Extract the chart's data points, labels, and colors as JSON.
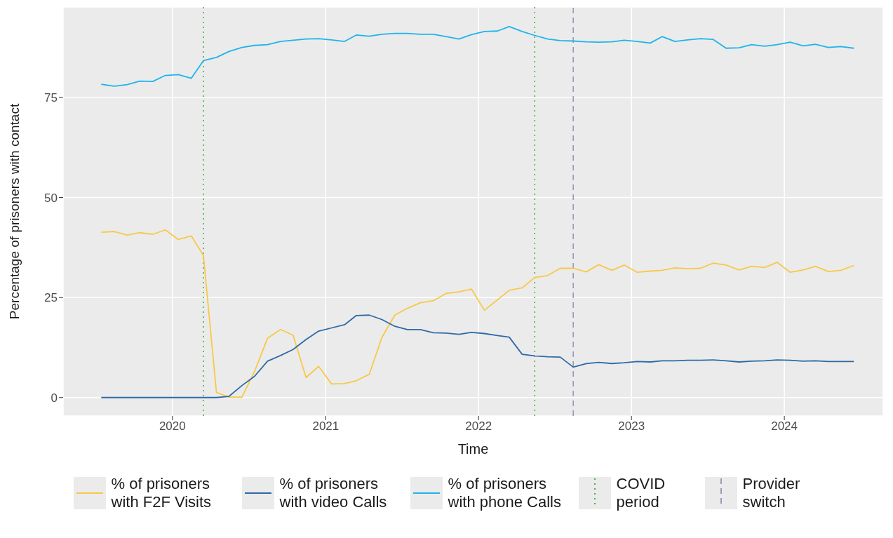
{
  "chart_data": {
    "type": "line",
    "xlabel": "Time",
    "ylabel": "Percentage of prisoners with contact",
    "x": [
      "2019-07-15",
      "2019-08-15",
      "2019-09-15",
      "2019-10-15",
      "2019-11-15",
      "2019-12-15",
      "2020-01-15",
      "2020-02-15",
      "2020-03-15",
      "2020-04-15",
      "2020-05-15",
      "2020-06-15",
      "2020-07-15",
      "2020-08-15",
      "2020-09-15",
      "2020-10-15",
      "2020-11-15",
      "2020-12-15",
      "2021-01-15",
      "2021-02-15",
      "2021-03-15",
      "2021-04-15",
      "2021-05-15",
      "2021-06-15",
      "2021-07-15",
      "2021-08-15",
      "2021-09-15",
      "2021-10-15",
      "2021-11-15",
      "2021-12-15",
      "2022-01-15",
      "2022-02-15",
      "2022-03-15",
      "2022-04-15",
      "2022-05-15",
      "2022-06-15",
      "2022-07-15",
      "2022-08-15",
      "2022-09-15",
      "2022-10-15",
      "2022-11-15",
      "2022-12-15",
      "2023-01-15",
      "2023-02-15",
      "2023-03-15",
      "2023-04-15",
      "2023-05-15",
      "2023-06-15",
      "2023-07-15",
      "2023-08-15",
      "2023-09-15",
      "2023-10-15",
      "2023-11-15",
      "2023-12-15",
      "2024-01-15",
      "2024-02-15",
      "2024-03-15",
      "2024-04-15",
      "2024-05-15",
      "2024-06-15"
    ],
    "series": [
      {
        "name": "% of prisoners with F2F Visits",
        "color": "#f7c948",
        "values": [
          41.3,
          41.5,
          40.6,
          41.2,
          40.8,
          41.9,
          39.5,
          40.4,
          35.5,
          1.3,
          0.1,
          0.1,
          6.5,
          14.8,
          17,
          15.6,
          5,
          7.8,
          3.4,
          3.5,
          4.2,
          5.8,
          15,
          20.6,
          22.3,
          23.7,
          24.2,
          26,
          26.4,
          27.1,
          21.8,
          24.4,
          26.8,
          27.4,
          30,
          30.5,
          32.3,
          32.3,
          31.4,
          33.2,
          31.8,
          33.1,
          31.3,
          31.6,
          31.8,
          32.4,
          32.2,
          32.3,
          33.6,
          33.1,
          31.9,
          32.8,
          32.5,
          33.8,
          31.3,
          31.9,
          32.8,
          31.5,
          31.8,
          33
        ]
      },
      {
        "name": "% of prisoners with video Calls",
        "color": "#2e6aa8",
        "values": [
          0,
          0,
          0,
          0,
          0,
          0,
          0,
          0,
          0,
          0,
          0.3,
          3,
          5.3,
          9.1,
          10.5,
          12,
          14.5,
          16.6,
          17.4,
          18.2,
          20.5,
          20.6,
          19.5,
          17.8,
          17,
          17,
          16.2,
          16.1,
          15.8,
          16.3,
          16,
          15.5,
          15.1,
          10.8,
          10.4,
          10.2,
          10.1,
          7.6,
          8.5,
          8.8,
          8.5,
          8.7,
          9,
          8.9,
          9.2,
          9.2,
          9.3,
          9.3,
          9.4,
          9.2,
          8.9,
          9.1,
          9.2,
          9.4,
          9.3,
          9.1,
          9.2,
          9,
          9,
          9
        ]
      },
      {
        "name": "% of prisoners with phone Calls",
        "color": "#1fb4ea",
        "values": [
          78.3,
          77.8,
          78.2,
          79.1,
          79,
          80.5,
          80.7,
          79.8,
          84.2,
          85,
          86.5,
          87.5,
          88,
          88.2,
          89,
          89.3,
          89.6,
          89.7,
          89.4,
          89,
          90.6,
          90.3,
          90.8,
          91,
          91,
          90.8,
          90.8,
          90.2,
          89.6,
          90.7,
          91.5,
          91.6,
          92.7,
          91.5,
          90.5,
          89.6,
          89.2,
          89.1,
          88.9,
          88.8,
          88.9,
          89.3,
          89,
          88.6,
          90.2,
          89,
          89.4,
          89.7,
          89.5,
          87.3,
          87.4,
          88.2,
          87.8,
          88.2,
          88.8,
          87.9,
          88.3,
          87.5,
          87.7,
          87.3
        ]
      }
    ],
    "xlim": [
      "2019-04-15",
      "2024-08-24"
    ],
    "xticks": [
      "2020",
      "2021",
      "2022",
      "2023",
      "2024"
    ],
    "ylim": [
      -4.6,
      97.6
    ],
    "yticks": [
      0,
      25,
      50,
      75
    ],
    "ref_lines": [
      {
        "axis": "x",
        "value": "2020-03-15",
        "label": "COVID period",
        "color": "#4daf4a",
        "line_style": "dotted"
      },
      {
        "axis": "x",
        "value": "2022-05-15",
        "color": "#4daf4a",
        "line_style": "dotted"
      },
      {
        "axis": "x",
        "value": "2022-08-15",
        "label": "Provider switch",
        "color": "#9a9ab8",
        "line_style": "dashed"
      }
    ],
    "grid": true,
    "legend": "bottom",
    "marker": "none",
    "line_style": "solid"
  }
}
